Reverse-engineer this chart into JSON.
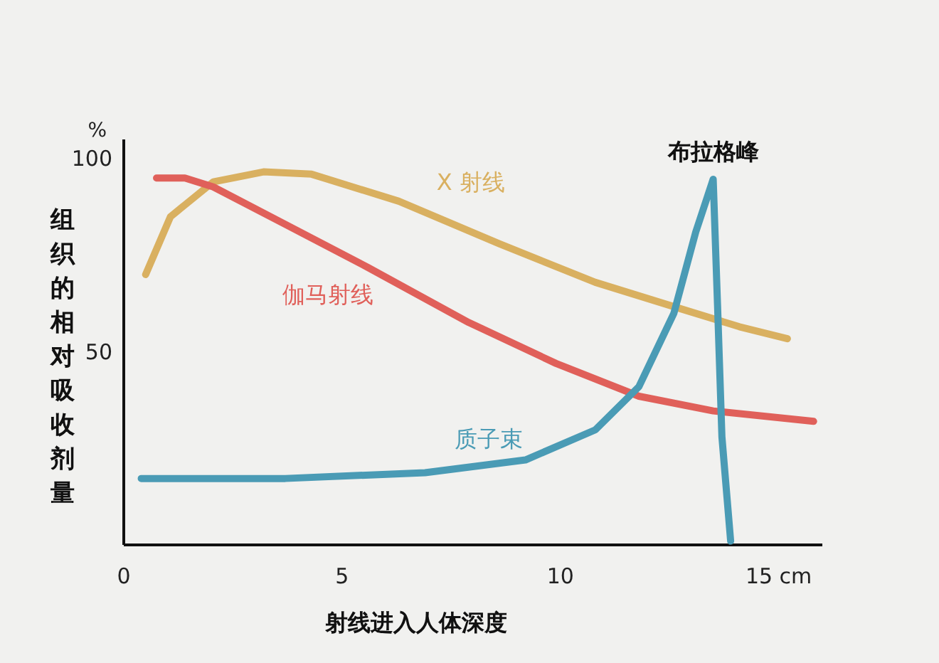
{
  "chart_data": {
    "type": "line",
    "xlabel": "射线进入人体深度",
    "ylabel": "组织的相对吸收剂量",
    "xlim": [
      0,
      16
    ],
    "ylim": [
      0,
      105
    ],
    "xticks": [
      0,
      5,
      10,
      {
        "value": 15,
        "label": "15 cm"
      }
    ],
    "yticks": [
      50,
      100
    ],
    "grid": false,
    "line_style": "solid",
    "annotations": [
      "%",
      {
        "text": "布拉格峰",
        "x": 13.5,
        "y": 94.7
      }
    ],
    "series": [
      {
        "name": "X 射线",
        "color": "#d9b060",
        "x": [
          0.5,
          1.07,
          2.05,
          3.2,
          4.3,
          6.3,
          8.6,
          10.8,
          12.8,
          14.1,
          15.2
        ],
        "values": [
          70,
          85,
          94,
          96.6,
          96,
          89,
          78,
          68,
          61,
          56.5,
          53.4
        ]
      },
      {
        "name": "伽马射线",
        "color": "#e0605a",
        "x": [
          0.75,
          1.4,
          2.05,
          3.7,
          5.6,
          7.9,
          9.9,
          11.8,
          13.5,
          15.8
        ],
        "values": [
          95,
          95,
          92.7,
          83,
          71.8,
          57.6,
          47,
          38.5,
          34.7,
          32
        ]
      },
      {
        "name": "质子束",
        "color": "#4a9bb5",
        "x": [
          0.4,
          3.7,
          6.9,
          9.2,
          10.8,
          11.8,
          12.6,
          13.1,
          13.5,
          13.6,
          13.7,
          13.9
        ],
        "values": [
          17.2,
          17.2,
          18.7,
          22,
          29.8,
          41,
          60,
          81,
          94.7,
          62,
          28,
          1
        ]
      }
    ]
  }
}
